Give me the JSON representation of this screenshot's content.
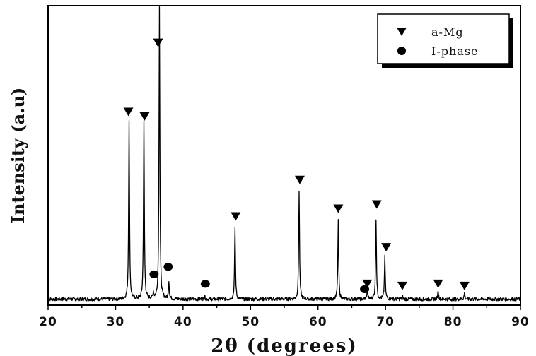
{
  "chart_data": {
    "type": "line",
    "xlabel": "2θ (degrees)",
    "ylabel": "Intensity (a.u)",
    "xlim": [
      20,
      90
    ],
    "x_ticks": [
      "20",
      "30",
      "40",
      "50",
      "60",
      "70",
      "80",
      "90"
    ],
    "y_ticks_labeled": false,
    "grid": false,
    "legend": {
      "placement": "top-right",
      "entries": [
        {
          "marker": "down-triangle",
          "label": "a-Mg"
        },
        {
          "marker": "filled-circle",
          "label": "I-phase"
        }
      ]
    },
    "y_axis_range_relative": [
      0,
      1
    ],
    "series": [
      {
        "style": "line",
        "color": "#000000",
        "baseline": 0.02,
        "noise": 0.006,
        "peaks": [
          {
            "x": 32.0,
            "y": 0.62
          },
          {
            "x": 34.2,
            "y": 0.61
          },
          {
            "x": 35.6,
            "y": 0.04
          },
          {
            "x": 36.5,
            "y": 1.0
          },
          {
            "x": 37.9,
            "y": 0.08
          },
          {
            "x": 43.2,
            "y": 0.03
          },
          {
            "x": 47.7,
            "y": 0.26
          },
          {
            "x": 57.2,
            "y": 0.38
          },
          {
            "x": 63.0,
            "y": 0.28
          },
          {
            "x": 67.3,
            "y": 0.05
          },
          {
            "x": 68.6,
            "y": 0.29
          },
          {
            "x": 69.9,
            "y": 0.16
          },
          {
            "x": 72.5,
            "y": 0.03
          },
          {
            "x": 77.8,
            "y": 0.05
          },
          {
            "x": 81.7,
            "y": 0.04
          }
        ]
      }
    ],
    "phase_markers": [
      {
        "phase": "a-Mg",
        "marker": "down-triangle",
        "x": 31.9,
        "y": 0.645
      },
      {
        "phase": "a-Mg",
        "marker": "down-triangle",
        "x": 34.3,
        "y": 0.63
      },
      {
        "phase": "a-Mg",
        "marker": "down-triangle",
        "x": 36.3,
        "y": 0.876
      },
      {
        "phase": "a-Mg",
        "marker": "down-triangle",
        "x": 47.8,
        "y": 0.296
      },
      {
        "phase": "a-Mg",
        "marker": "down-triangle",
        "x": 57.3,
        "y": 0.418
      },
      {
        "phase": "a-Mg",
        "marker": "down-triangle",
        "x": 63.0,
        "y": 0.322
      },
      {
        "phase": "a-Mg",
        "marker": "down-triangle",
        "x": 67.3,
        "y": 0.071
      },
      {
        "phase": "a-Mg",
        "marker": "down-triangle",
        "x": 68.7,
        "y": 0.336
      },
      {
        "phase": "a-Mg",
        "marker": "down-triangle",
        "x": 70.1,
        "y": 0.193
      },
      {
        "phase": "a-Mg",
        "marker": "down-triangle",
        "x": 72.5,
        "y": 0.064
      },
      {
        "phase": "a-Mg",
        "marker": "down-triangle",
        "x": 77.8,
        "y": 0.071
      },
      {
        "phase": "a-Mg",
        "marker": "down-triangle",
        "x": 81.7,
        "y": 0.064
      },
      {
        "phase": "I-phase",
        "marker": "filled-circle",
        "x": 35.7,
        "y": 0.103
      },
      {
        "phase": "I-phase",
        "marker": "filled-circle",
        "x": 37.8,
        "y": 0.128
      },
      {
        "phase": "I-phase",
        "marker": "filled-circle",
        "x": 43.3,
        "y": 0.071
      },
      {
        "phase": "I-phase",
        "marker": "filled-circle",
        "x": 66.9,
        "y": 0.053
      }
    ],
    "colors": {
      "line": "#000000",
      "markers": "#000000",
      "frame": "#000000"
    }
  }
}
